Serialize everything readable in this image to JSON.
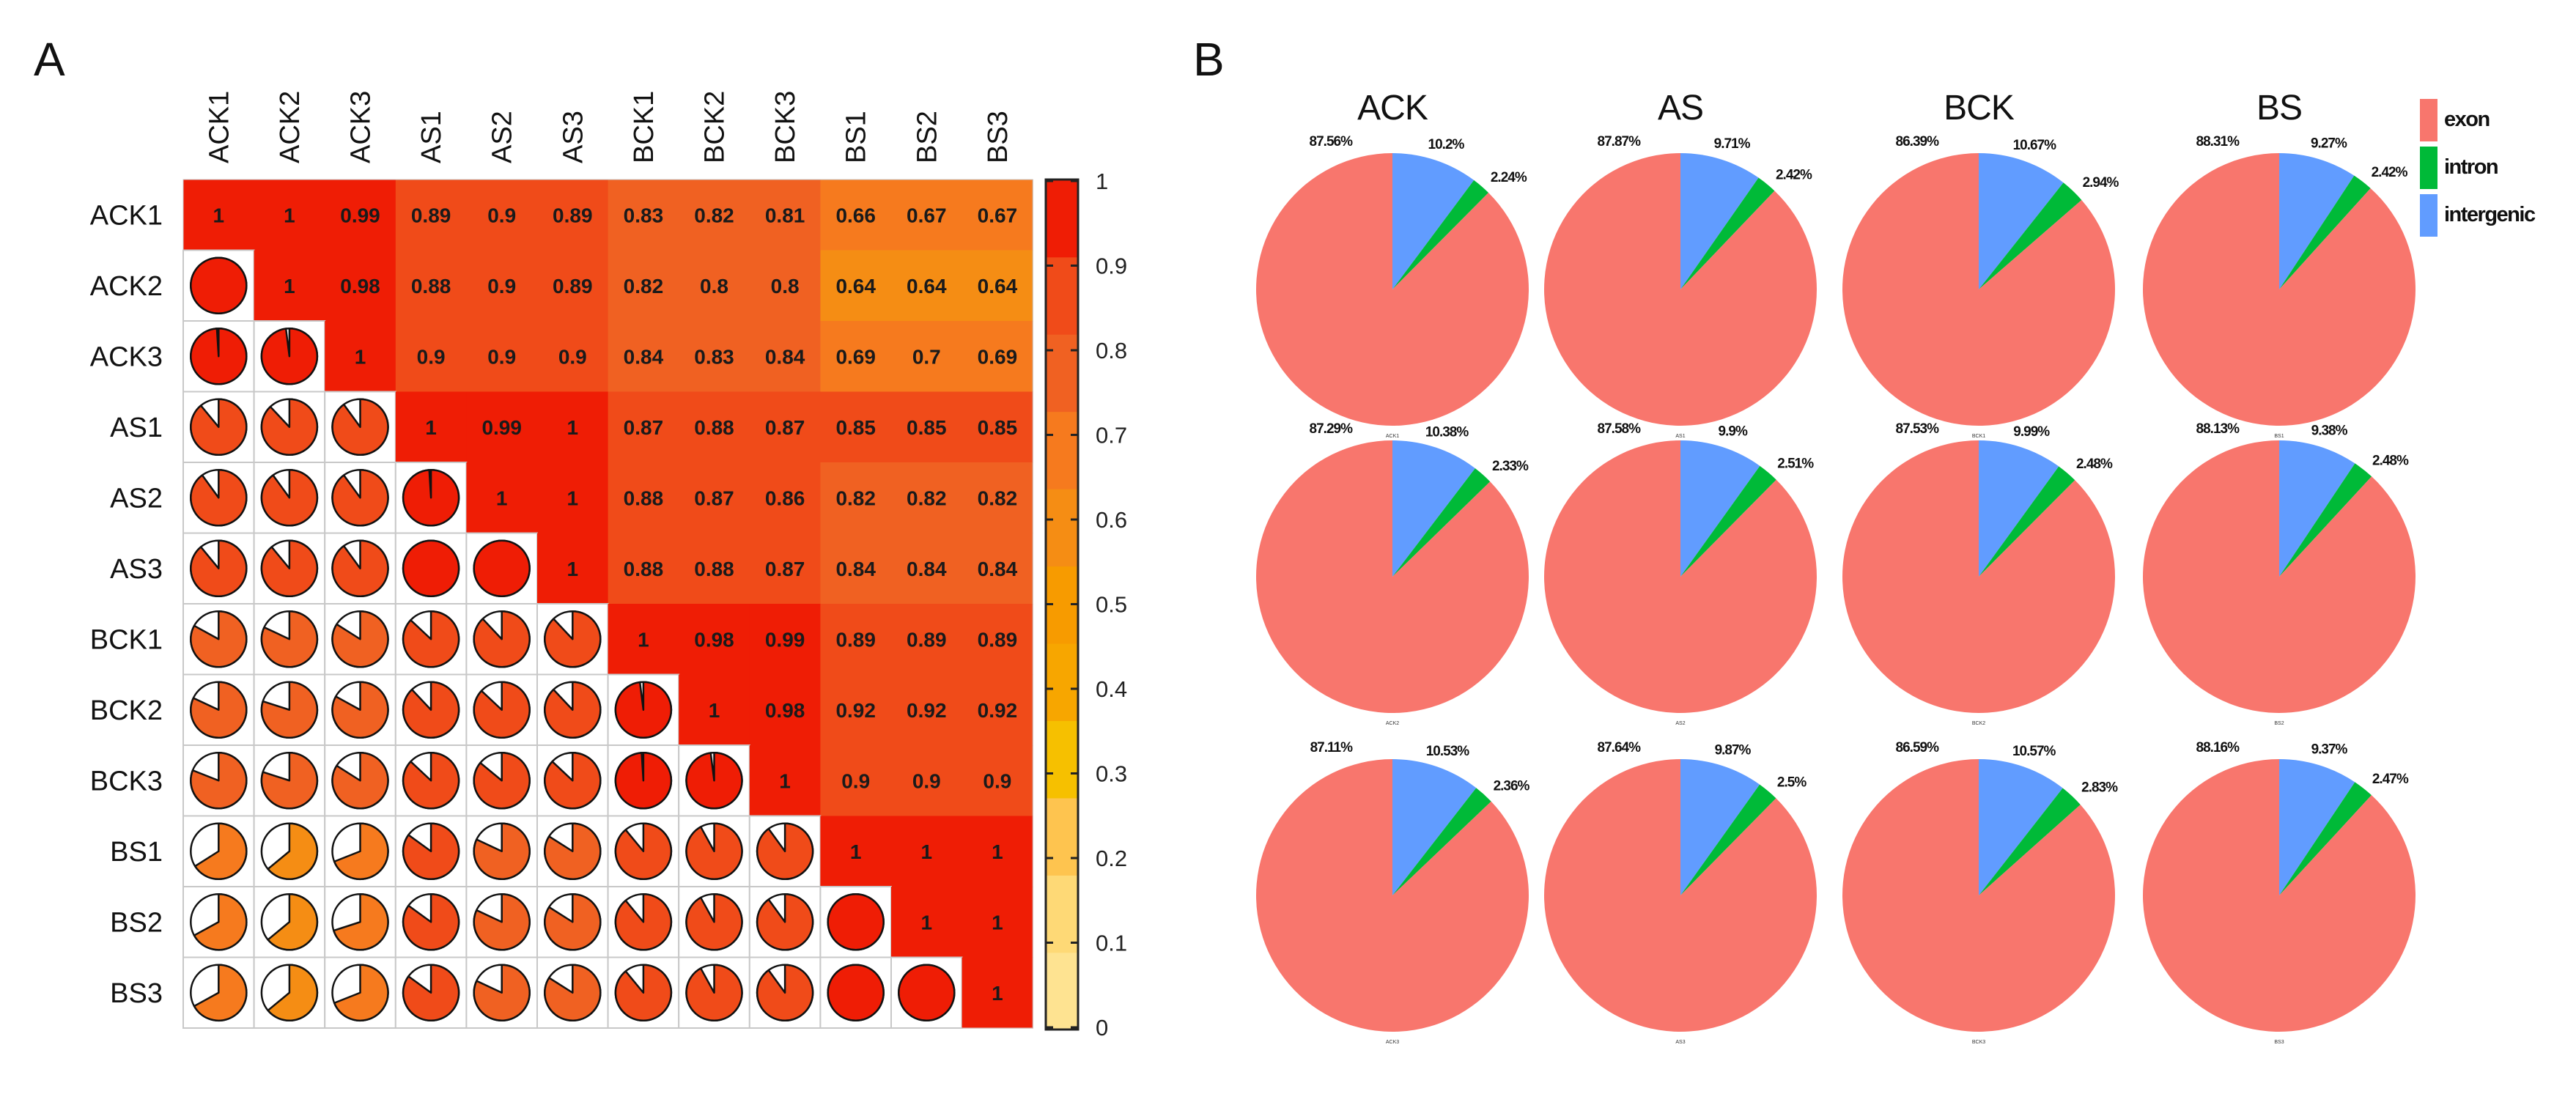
{
  "panel_a_label": "A",
  "panel_b_label": "B",
  "colors": {
    "exon": "#f8766d",
    "intron": "#00ba38",
    "intergenic": "#619cff",
    "grid": "#c8c8c8"
  },
  "chart_data": [
    {
      "type": "heatmap",
      "title": "",
      "labels": [
        "ACK1",
        "ACK2",
        "ACK3",
        "AS1",
        "AS2",
        "AS3",
        "BCK1",
        "BCK2",
        "BCK3",
        "BS1",
        "BS2",
        "BS3"
      ],
      "matrix": [
        [
          1,
          1,
          0.99,
          0.89,
          0.9,
          0.89,
          0.83,
          0.82,
          0.81,
          0.66,
          0.67,
          0.67
        ],
        [
          1,
          1,
          0.98,
          0.88,
          0.9,
          0.89,
          0.82,
          0.8,
          0.8,
          0.64,
          0.64,
          0.64
        ],
        [
          0.99,
          0.98,
          1,
          0.9,
          0.9,
          0.9,
          0.84,
          0.83,
          0.84,
          0.69,
          0.7,
          0.69
        ],
        [
          0.89,
          0.88,
          0.9,
          1,
          0.99,
          1,
          0.87,
          0.88,
          0.87,
          0.85,
          0.85,
          0.85
        ],
        [
          0.9,
          0.9,
          0.9,
          0.99,
          1,
          1,
          0.88,
          0.87,
          0.86,
          0.82,
          0.82,
          0.82
        ],
        [
          0.89,
          0.89,
          0.9,
          1,
          1,
          1,
          0.88,
          0.88,
          0.87,
          0.84,
          0.84,
          0.84
        ],
        [
          0.83,
          0.82,
          0.84,
          0.87,
          0.88,
          0.88,
          1,
          0.98,
          0.99,
          0.89,
          0.89,
          0.89
        ],
        [
          0.82,
          0.8,
          0.83,
          0.88,
          0.87,
          0.88,
          0.98,
          1,
          0.98,
          0.92,
          0.92,
          0.92
        ],
        [
          0.81,
          0.8,
          0.84,
          0.87,
          0.86,
          0.87,
          0.99,
          0.98,
          1,
          0.9,
          0.9,
          0.9
        ],
        [
          0.66,
          0.64,
          0.69,
          0.85,
          0.82,
          0.84,
          0.89,
          0.92,
          0.9,
          1,
          1,
          1
        ],
        [
          0.67,
          0.64,
          0.7,
          0.85,
          0.82,
          0.84,
          0.89,
          0.92,
          0.9,
          1,
          1,
          1
        ],
        [
          0.67,
          0.64,
          0.69,
          0.85,
          0.82,
          0.84,
          0.89,
          0.92,
          0.9,
          1,
          1,
          1
        ]
      ],
      "upper": "number",
      "lower": "pie",
      "colorbar": {
        "ticks": [
          "0",
          "0.1",
          "0.2",
          "0.3",
          "0.4",
          "0.5",
          "0.6",
          "0.7",
          "0.8",
          "0.9",
          "1"
        ],
        "range": [
          0,
          1
        ],
        "colors": [
          "#fee391",
          "#fed976",
          "#fec44f",
          "#f6c000",
          "#f7a600",
          "#f79b00",
          "#f58d14",
          "#f67a1e",
          "#f06122",
          "#f04b19",
          "#ef1d05"
        ]
      }
    },
    {
      "type": "pie",
      "columns": [
        "ACK",
        "AS",
        "BCK",
        "BS"
      ],
      "legend": [
        "exon",
        "intron",
        "intergenic"
      ],
      "legend_position": "top-right",
      "pies": [
        {
          "label": "ACK1",
          "exon": 87.56,
          "intron": 2.24,
          "intergenic": 10.2,
          "exon_text": "87.56%",
          "intron_text": "2.24%",
          "intergenic_text": "10.2%"
        },
        {
          "label": "AS1",
          "exon": 87.87,
          "intron": 2.42,
          "intergenic": 9.71,
          "exon_text": "87.87%",
          "intron_text": "2.42%",
          "intergenic_text": "9.71%"
        },
        {
          "label": "BCK1",
          "exon": 86.39,
          "intron": 2.94,
          "intergenic": 10.67,
          "exon_text": "86.39%",
          "intron_text": "2.94%",
          "intergenic_text": "10.67%"
        },
        {
          "label": "BS1",
          "exon": 88.31,
          "intron": 2.42,
          "intergenic": 9.27,
          "exon_text": "88.31%",
          "intron_text": "2.42%",
          "intergenic_text": "9.27%"
        },
        {
          "label": "ACK2",
          "exon": 87.29,
          "intron": 2.33,
          "intergenic": 10.38,
          "exon_text": "87.29%",
          "intron_text": "2.33%",
          "intergenic_text": "10.38%"
        },
        {
          "label": "AS2",
          "exon": 87.58,
          "intron": 2.51,
          "intergenic": 9.9,
          "exon_text": "87.58%",
          "intron_text": "2.51%",
          "intergenic_text": "9.9%"
        },
        {
          "label": "BCK2",
          "exon": 87.53,
          "intron": 2.48,
          "intergenic": 9.99,
          "exon_text": "87.53%",
          "intron_text": "2.48%",
          "intergenic_text": "9.99%"
        },
        {
          "label": "BS2",
          "exon": 88.13,
          "intron": 2.48,
          "intergenic": 9.38,
          "exon_text": "88.13%",
          "intron_text": "2.48%",
          "intergenic_text": "9.38%"
        },
        {
          "label": "ACK3",
          "exon": 87.11,
          "intron": 2.36,
          "intergenic": 10.53,
          "exon_text": "87.11%",
          "intron_text": "2.36%",
          "intergenic_text": "10.53%"
        },
        {
          "label": "AS3",
          "exon": 87.64,
          "intron": 2.5,
          "intergenic": 9.87,
          "exon_text": "87.64%",
          "intron_text": "2.5%",
          "intergenic_text": "9.87%"
        },
        {
          "label": "BCK3",
          "exon": 86.59,
          "intron": 2.83,
          "intergenic": 10.57,
          "exon_text": "86.59%",
          "intron_text": "2.83%",
          "intergenic_text": "10.57%"
        },
        {
          "label": "BS3",
          "exon": 88.16,
          "intron": 2.47,
          "intergenic": 9.37,
          "exon_text": "88.16%",
          "intron_text": "2.47%",
          "intergenic_text": "9.37%"
        }
      ]
    }
  ]
}
